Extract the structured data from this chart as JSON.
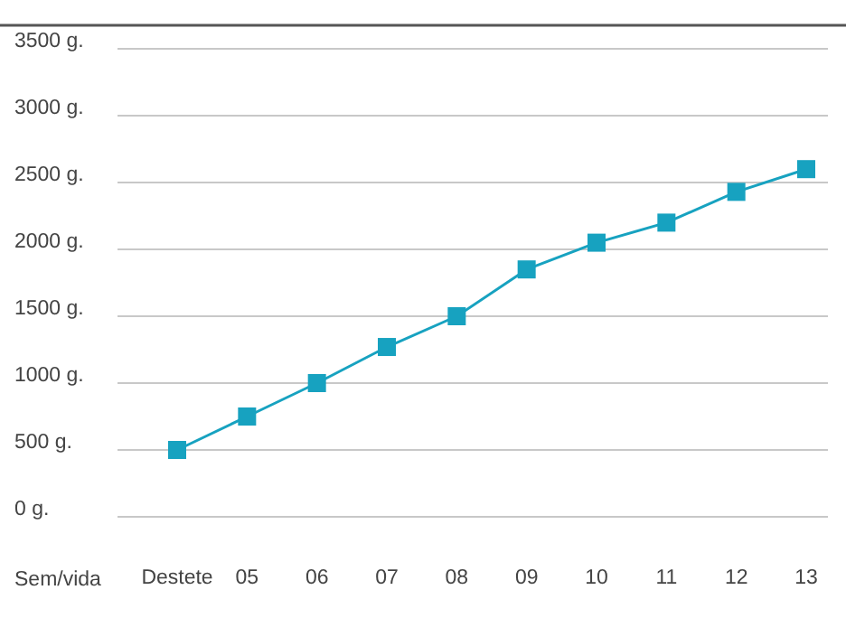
{
  "chart_data": {
    "type": "line",
    "xlabel": "Sem/vida",
    "categories": [
      "Destete",
      "05",
      "06",
      "07",
      "08",
      "09",
      "10",
      "11",
      "12",
      "13"
    ],
    "series": [
      {
        "color": "#17a2c0",
        "values": [
          500,
          750,
          1000,
          1270,
          1500,
          1850,
          2050,
          2200,
          2430,
          2600
        ]
      }
    ],
    "ylim": [
      0,
      3500
    ],
    "yticks": [
      {
        "value": 0,
        "label": "0 g."
      },
      {
        "value": 500,
        "label": "500 g."
      },
      {
        "value": 1000,
        "label": "1000 g."
      },
      {
        "value": 1500,
        "label": "1500 g."
      },
      {
        "value": 2000,
        "label": "2000 g."
      },
      {
        "value": 2500,
        "label": "2500 g."
      },
      {
        "value": 3000,
        "label": "3000 g."
      },
      {
        "value": 3500,
        "label": "3500 g."
      }
    ],
    "grid": "y",
    "marker": "square",
    "line_style": "solid"
  }
}
